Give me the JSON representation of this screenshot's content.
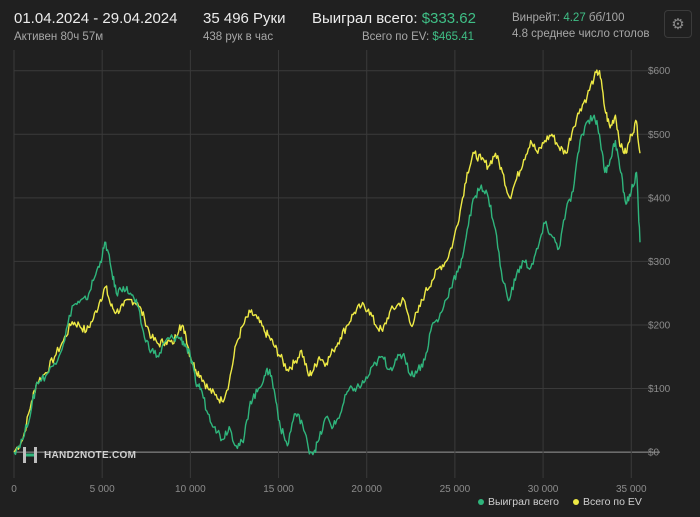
{
  "header": {
    "date_range": "01.04.2024 - 29.04.2024",
    "active_time": "Активен 80ч 57м",
    "hands": "35 496 Руки",
    "hands_per_hour": "438 рук в час",
    "won_label": "Выиграл всего:",
    "won_value": "$333.62",
    "ev_label": "Всего по EV:",
    "ev_value": "$465.41",
    "winrate_label": "Винрейт:",
    "winrate_value": "4.27",
    "winrate_unit": "бб/100",
    "tables": "4.8 среднее число столов",
    "settings_icon": "gear-icon"
  },
  "logo": {
    "text": "HAND2NOTE.COM",
    "icon": "hand2note-logo-icon"
  },
  "chart_data": {
    "type": "line",
    "xlim": [
      0,
      35496
    ],
    "ylim": [
      -25,
      620
    ],
    "x_ticks": [
      0,
      5000,
      10000,
      15000,
      20000,
      25000,
      30000,
      35000
    ],
    "x_tick_labels": [
      "0",
      "5 000",
      "10 000",
      "15 000",
      "20 000",
      "25 000",
      "30 000",
      "35 000"
    ],
    "y_ticks": [
      0,
      100,
      200,
      300,
      400,
      500,
      600
    ],
    "y_tick_labels": [
      "$0",
      "$100",
      "$200",
      "$300",
      "$400",
      "$500",
      "$600"
    ],
    "grid": true,
    "legend_position": "bottom-right",
    "series": [
      {
        "name": "Выиграл всего",
        "color": "#2fb57c",
        "x": [
          0,
          500,
          1000,
          1300,
          1800,
          2300,
          2800,
          3300,
          3700,
          4100,
          4500,
          4900,
          5200,
          5500,
          5800,
          6200,
          6600,
          7000,
          7400,
          7800,
          8200,
          8600,
          9000,
          9400,
          9700,
          10000,
          10300,
          10600,
          11000,
          11400,
          11800,
          12200,
          12600,
          13000,
          13400,
          13800,
          14200,
          14500,
          14800,
          15100,
          15500,
          15900,
          16300,
          16700,
          17000,
          17300,
          17700,
          18100,
          18500,
          18900,
          19300,
          19700,
          20100,
          20500,
          20900,
          21300,
          21700,
          22100,
          22500,
          22900,
          23300,
          23700,
          24100,
          24500,
          24900,
          25300,
          25700,
          26100,
          26500,
          26900,
          27300,
          27700,
          28100,
          28500,
          28900,
          29300,
          29700,
          30100,
          30500,
          30900,
          31300,
          31700,
          32100,
          32500,
          32900,
          33200,
          33500,
          33800,
          34100,
          34400,
          34700,
          35000,
          35300,
          35496
        ],
        "y": [
          0,
          20,
          70,
          110,
          120,
          140,
          170,
          230,
          235,
          240,
          270,
          300,
          330,
          290,
          250,
          260,
          250,
          230,
          180,
          160,
          150,
          175,
          180,
          180,
          170,
          150,
          110,
          100,
          60,
          40,
          20,
          40,
          10,
          15,
          80,
          95,
          120,
          130,
          90,
          40,
          10,
          60,
          50,
          5,
          0,
          20,
          55,
          40,
          60,
          95,
          100,
          105,
          120,
          140,
          150,
          130,
          145,
          155,
          120,
          130,
          145,
          200,
          210,
          240,
          270,
          290,
          350,
          400,
          420,
          400,
          350,
          270,
          240,
          280,
          300,
          290,
          320,
          360,
          340,
          320,
          380,
          410,
          490,
          520,
          530,
          500,
          440,
          460,
          490,
          440,
          390,
          410,
          440,
          330
        ]
      },
      {
        "name": "Всего по EV",
        "color": "#eeea45",
        "x": [
          0,
          500,
          1000,
          1300,
          1800,
          2300,
          2800,
          3300,
          3700,
          4100,
          4500,
          4900,
          5200,
          5500,
          5800,
          6200,
          6600,
          7000,
          7400,
          7800,
          8200,
          8600,
          9000,
          9400,
          9700,
          10000,
          10300,
          10600,
          11000,
          11400,
          11800,
          12200,
          12600,
          13000,
          13400,
          13800,
          14200,
          14500,
          14800,
          15100,
          15500,
          15900,
          16300,
          16700,
          17000,
          17300,
          17700,
          18100,
          18500,
          18900,
          19300,
          19700,
          20100,
          20500,
          20900,
          21300,
          21700,
          22100,
          22500,
          22900,
          23300,
          23700,
          24100,
          24500,
          24900,
          25300,
          25700,
          26100,
          26500,
          26900,
          27300,
          27700,
          28100,
          28500,
          28900,
          29300,
          29700,
          30100,
          30500,
          30900,
          31300,
          31700,
          32100,
          32500,
          32900,
          33200,
          33500,
          33800,
          34100,
          34400,
          34700,
          35000,
          35300,
          35496
        ],
        "y": [
          0,
          20,
          80,
          110,
          125,
          150,
          175,
          205,
          200,
          190,
          210,
          240,
          260,
          230,
          220,
          230,
          240,
          235,
          210,
          180,
          170,
          175,
          170,
          200,
          190,
          150,
          130,
          120,
          100,
          90,
          80,
          110,
          170,
          200,
          220,
          210,
          190,
          180,
          165,
          150,
          130,
          140,
          160,
          120,
          130,
          150,
          140,
          160,
          180,
          200,
          220,
          230,
          225,
          200,
          190,
          220,
          230,
          240,
          200,
          220,
          250,
          270,
          290,
          300,
          330,
          380,
          440,
          470,
          460,
          450,
          470,
          440,
          400,
          430,
          460,
          490,
          470,
          490,
          500,
          480,
          470,
          510,
          540,
          560,
          590,
          600,
          540,
          510,
          530,
          480,
          470,
          500,
          520,
          470
        ]
      }
    ]
  }
}
